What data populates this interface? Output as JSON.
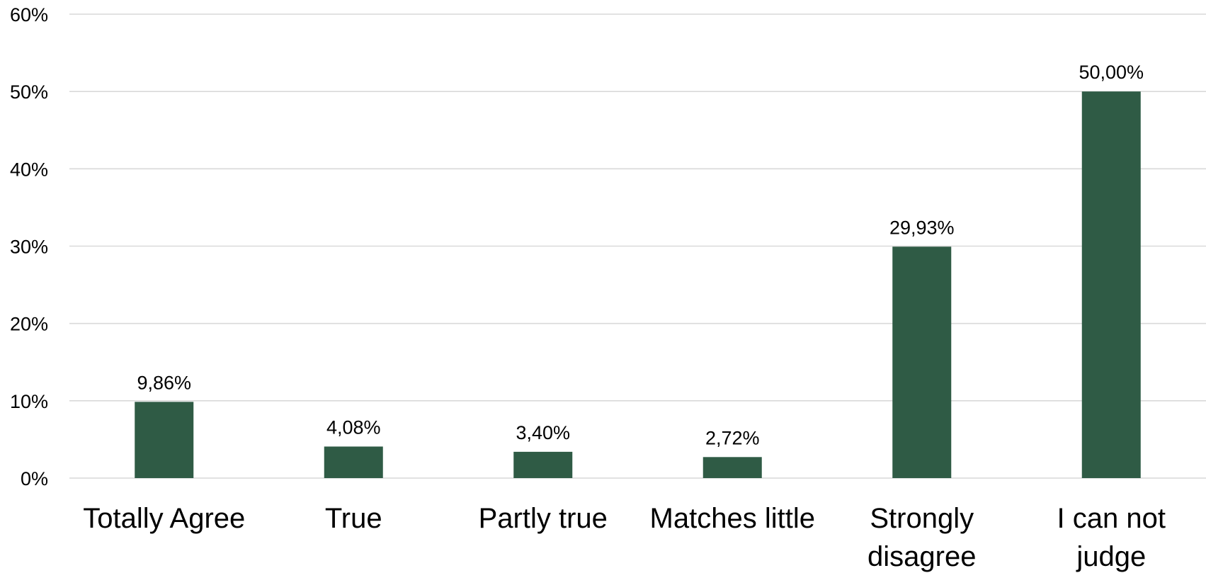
{
  "chart_data": {
    "type": "bar",
    "title": "",
    "xlabel": "",
    "ylabel": "",
    "categories": [
      "Totally Agree",
      "True",
      "Partly true",
      "Matches little",
      "Strongly disagree",
      "I can not judge"
    ],
    "category_label_lines": [
      [
        "Totally Agree"
      ],
      [
        "True"
      ],
      [
        "Partly true"
      ],
      [
        "Matches little"
      ],
      [
        "Strongly",
        "disagree"
      ],
      [
        "I can not",
        "judge"
      ]
    ],
    "values": [
      9.86,
      4.08,
      3.4,
      2.72,
      29.93,
      50.0
    ],
    "data_labels": [
      "9,86%",
      "4,08%",
      "3,40%",
      "2,72%",
      "29,93%",
      "50,00%"
    ],
    "ylim": [
      0,
      60
    ],
    "y_ticks": [
      0,
      10,
      20,
      30,
      40,
      50,
      60
    ],
    "y_tick_labels": [
      "0%",
      "10%",
      "20%",
      "30%",
      "40%",
      "50%",
      "60%"
    ],
    "grid": true,
    "legend": "none",
    "bar_color": "#2f5b45"
  }
}
